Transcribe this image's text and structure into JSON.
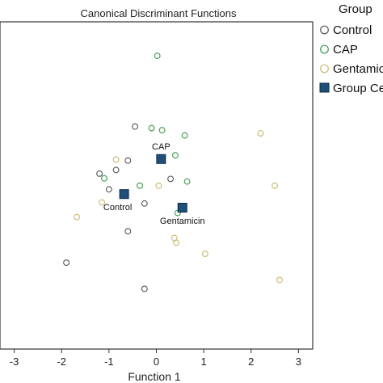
{
  "chart_data": {
    "type": "scatter",
    "title": "Canonical Discriminant Functions",
    "xlabel": "Function 1",
    "ylabel": "",
    "xlim": [
      -3.3,
      3.3
    ],
    "ylim": [
      -3.2,
      3.05
    ],
    "xticks": [
      -3,
      -2,
      -1,
      0,
      1,
      2,
      3
    ],
    "grid": false,
    "legend": {
      "title": "Group",
      "placement": "right",
      "entries": [
        "Control",
        "CAP",
        "Gentamicin",
        "Group Centroid"
      ]
    },
    "colors": {
      "Control": "#555555",
      "CAP": "#3a9a4a",
      "Gentamicin": "#c9b76a",
      "Group Centroid": "#1f4e79"
    },
    "series": [
      {
        "name": "Control",
        "points": [
          [
            -0.45,
            1.05
          ],
          [
            -0.6,
            0.4
          ],
          [
            -0.85,
            0.22
          ],
          [
            -1.2,
            0.15
          ],
          [
            -1.0,
            -0.15
          ],
          [
            0.3,
            0.05
          ],
          [
            -0.25,
            -0.42
          ],
          [
            -0.6,
            -0.95
          ],
          [
            -1.9,
            -1.55
          ],
          [
            -0.25,
            -2.05
          ]
        ]
      },
      {
        "name": "CAP",
        "points": [
          [
            0.02,
            2.4
          ],
          [
            -0.1,
            1.02
          ],
          [
            0.12,
            0.98
          ],
          [
            0.6,
            0.88
          ],
          [
            0.4,
            0.5
          ],
          [
            -1.1,
            0.06
          ],
          [
            -0.35,
            -0.08
          ],
          [
            0.65,
            0.0
          ],
          [
            0.45,
            -0.6
          ]
        ]
      },
      {
        "name": "Gentamicin",
        "points": [
          [
            2.2,
            0.92
          ],
          [
            -0.85,
            0.42
          ],
          [
            0.05,
            -0.08
          ],
          [
            2.5,
            -0.08
          ],
          [
            -1.15,
            -0.4
          ],
          [
            -1.68,
            -0.68
          ],
          [
            0.38,
            -1.08
          ],
          [
            0.42,
            -1.17
          ],
          [
            1.03,
            -1.38
          ],
          [
            2.6,
            -1.88
          ]
        ]
      }
    ],
    "centroids": [
      {
        "name": "Control",
        "x": -0.68,
        "y": -0.24
      },
      {
        "name": "CAP",
        "x": 0.1,
        "y": 0.43
      },
      {
        "name": "Gentamicin",
        "x": 0.55,
        "y": -0.5
      }
    ]
  }
}
